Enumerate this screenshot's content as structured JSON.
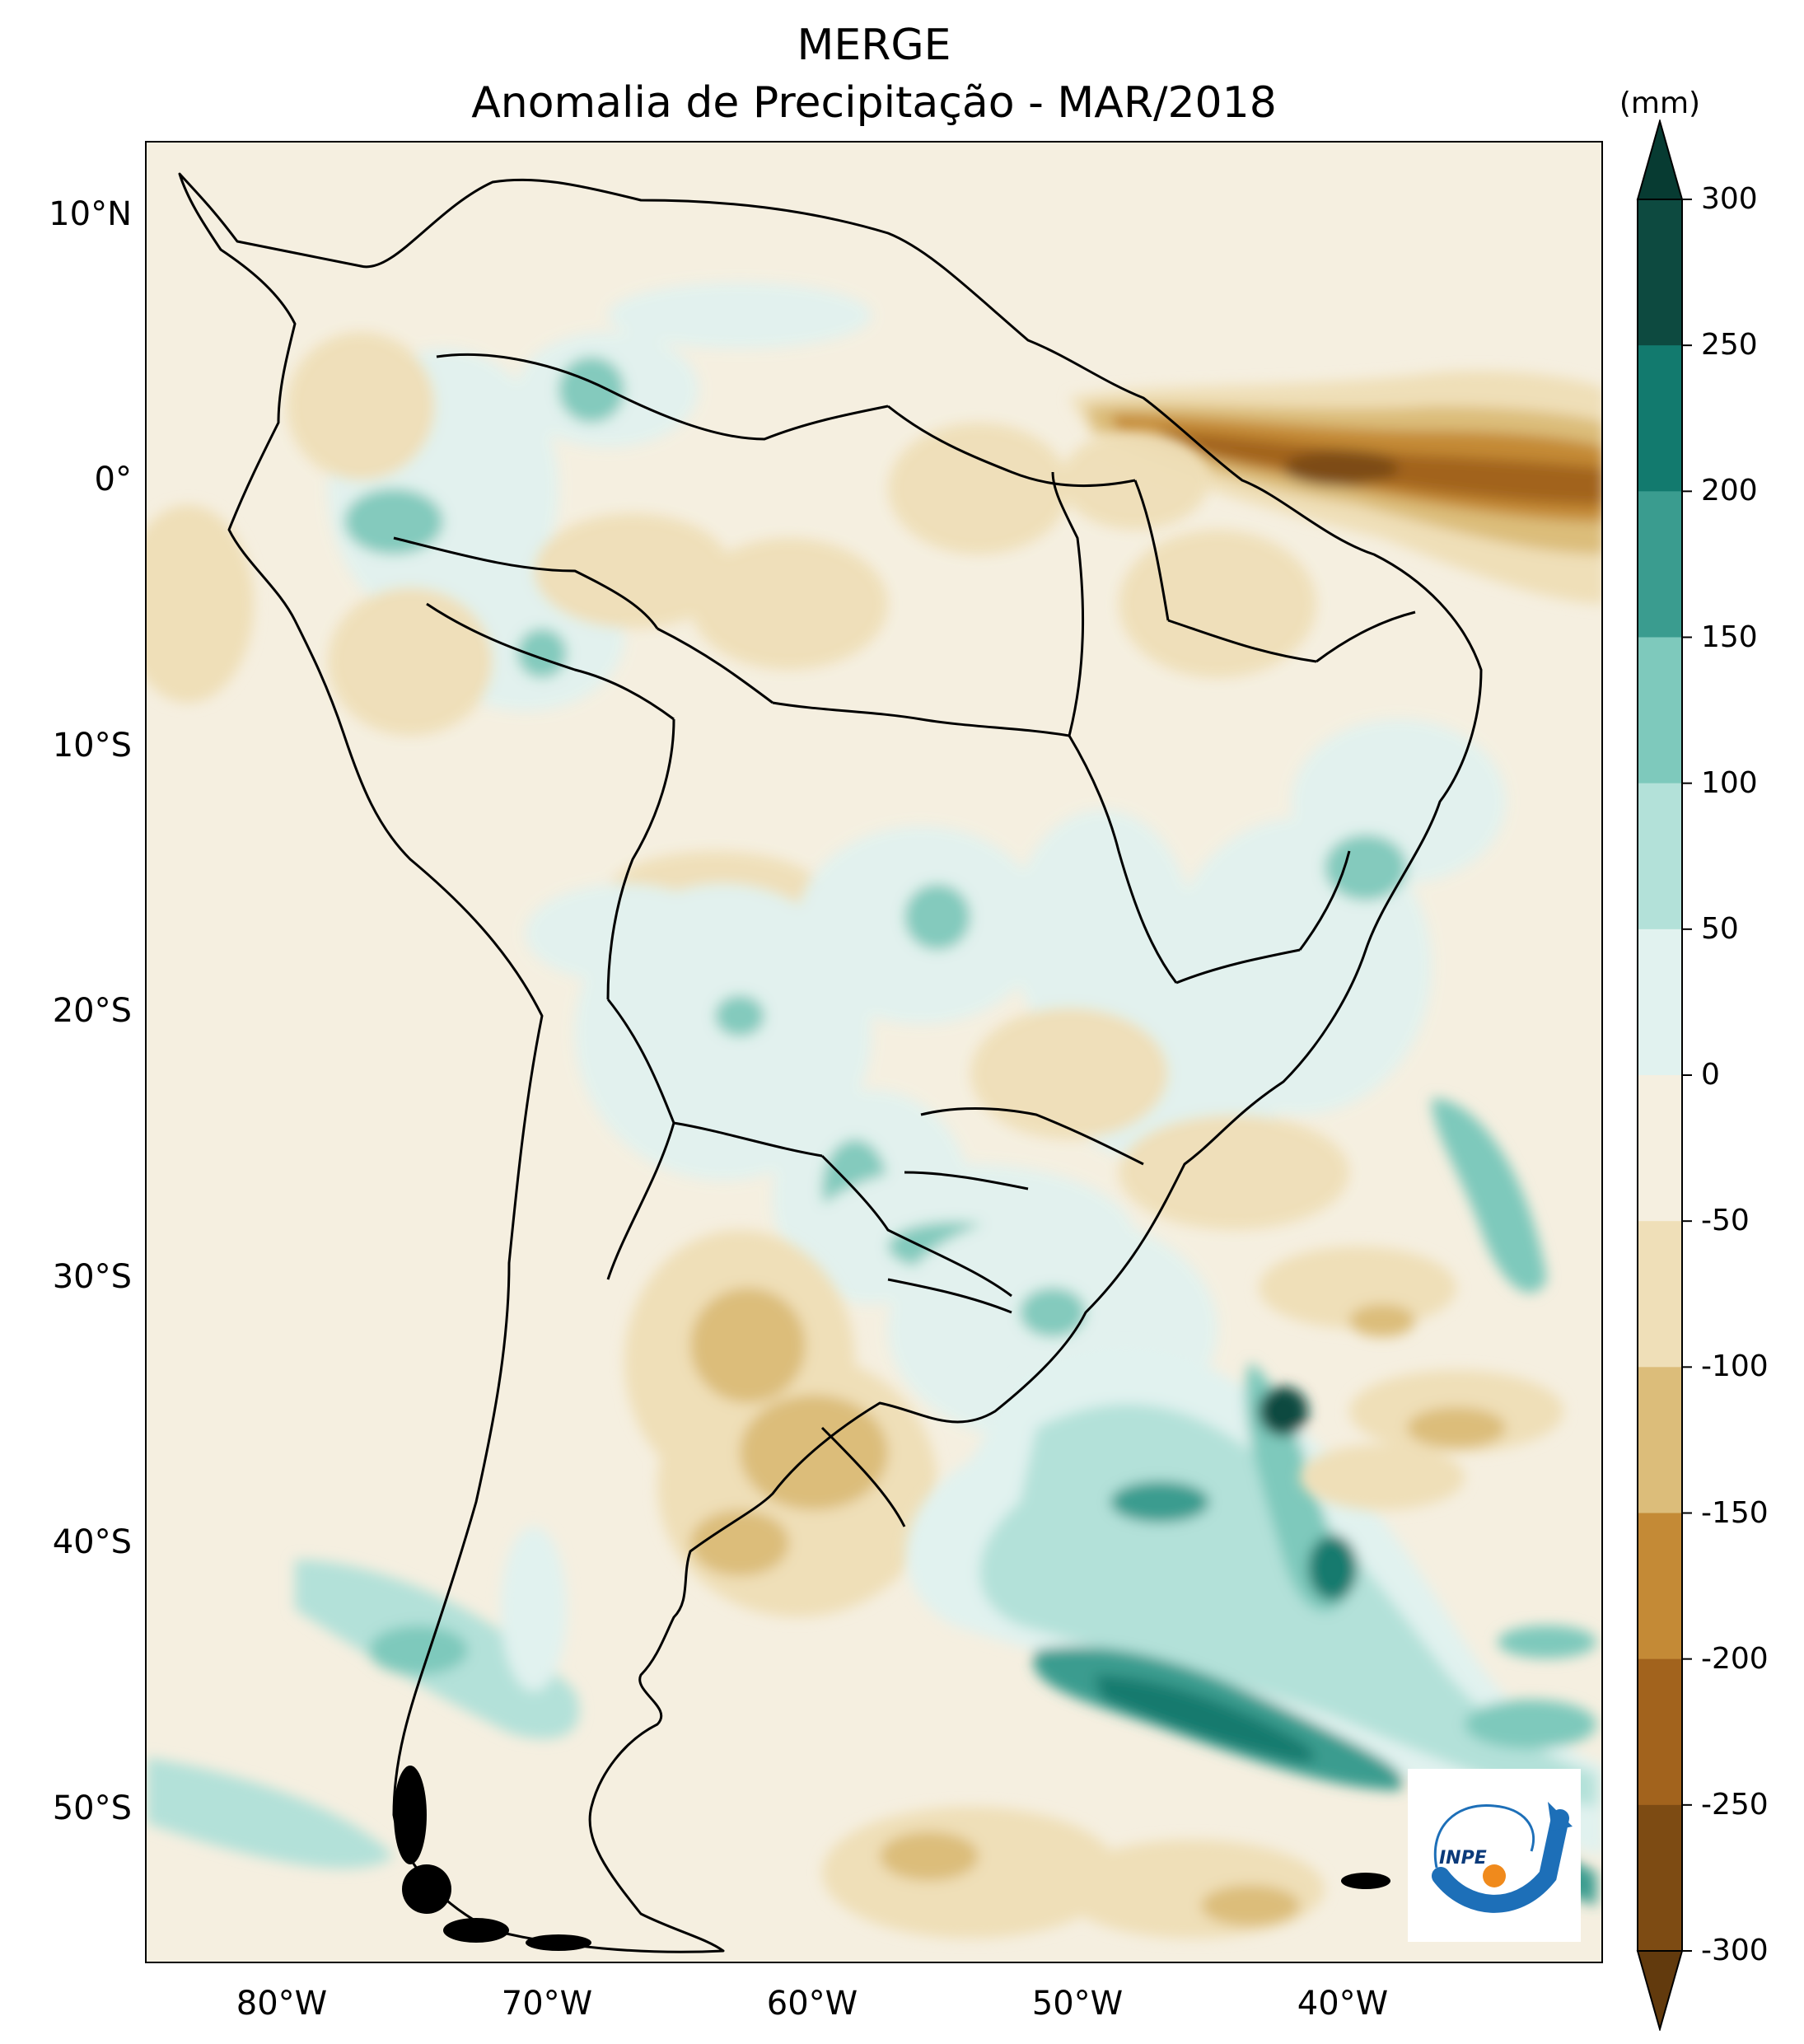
{
  "title": {
    "line1": "MERGE",
    "line2": "Anomalia de Precipitação - MAR/2018"
  },
  "map": {
    "lon_range": [
      -85,
      -30
    ],
    "lat_range": [
      -56,
      12.5
    ],
    "lat_ticks": [
      "10°N",
      "0°",
      "10°S",
      "20°S",
      "30°S",
      "40°S",
      "50°S"
    ],
    "lon_ticks": [
      "80°W",
      "70°W",
      "60°W",
      "50°W",
      "40°W"
    ],
    "background_color": "#f5efe0"
  },
  "colorbar": {
    "unit": "(mm)",
    "labels": [
      "300",
      "250",
      "200",
      "150",
      "100",
      "50",
      "0",
      "-50",
      "-100",
      "-150",
      "-200",
      "-250",
      "-300"
    ],
    "colors_top_to_bottom": [
      "#0d4a40",
      "#127a6e",
      "#3a9c8f",
      "#7ec9bc",
      "#b3e1d9",
      "#e1f2ef",
      "#f5efe0",
      "#efdfb8",
      "#dcbd7a",
      "#c48a36",
      "#a2631d",
      "#7d4b13"
    ],
    "extend_top_color": "#073b32",
    "extend_bottom_color": "#623a0d"
  },
  "logo": {
    "text": "INPE",
    "icon": "inpe-logo"
  }
}
